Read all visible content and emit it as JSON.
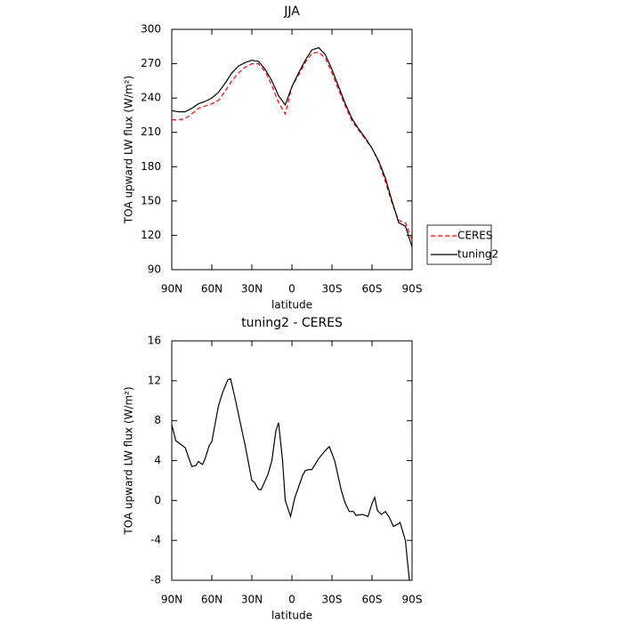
{
  "chart_data": [
    {
      "type": "line",
      "title": "JJA",
      "xlabel": "latitude",
      "ylabel": "TOA upward LW flux (W/m²)",
      "x": [
        90,
        85,
        80,
        75,
        70,
        65,
        60,
        55,
        50,
        45,
        40,
        35,
        30,
        25,
        20,
        15,
        10,
        5,
        0,
        -5,
        -10,
        -15,
        -20,
        -25,
        -30,
        -35,
        -40,
        -45,
        -50,
        -55,
        -60,
        -65,
        -70,
        -75,
        -80,
        -85,
        -90
      ],
      "series": [
        {
          "name": "CERES",
          "color": "#ff0000",
          "dashed": true,
          "values": [
            221,
            221,
            222,
            226,
            231,
            233,
            235,
            238,
            246,
            255,
            262,
            267,
            270,
            270,
            263,
            251,
            236,
            226,
            250,
            260,
            271,
            279,
            280,
            275,
            262,
            247,
            233,
            220,
            212,
            204,
            196,
            184,
            167,
            148,
            133,
            131,
            116
          ]
        },
        {
          "name": "tuning2",
          "color": "#000000",
          "dashed": false,
          "values": [
            229,
            228,
            228,
            231,
            235,
            237,
            240,
            245,
            253,
            262,
            268,
            271,
            273,
            272,
            265,
            255,
            242,
            234,
            250,
            262,
            273,
            282,
            284,
            278,
            265,
            250,
            235,
            222,
            213,
            205,
            196,
            185,
            170,
            150,
            131,
            128,
            110
          ]
        }
      ],
      "xlim": [
        90,
        -90
      ],
      "xticks": [
        {
          "value": 90,
          "label": "90N"
        },
        {
          "value": 60,
          "label": "60N"
        },
        {
          "value": 30,
          "label": "30N"
        },
        0,
        {
          "value": -30,
          "label": "30S"
        },
        {
          "value": -60,
          "label": "60S"
        },
        {
          "value": -90,
          "label": "90S"
        }
      ],
      "ylim": [
        90,
        300
      ],
      "yticks": [
        90,
        120,
        150,
        180,
        210,
        240,
        270,
        300
      ],
      "legend": "right"
    },
    {
      "type": "line",
      "title": "tuning2 - CERES",
      "xlabel": "latitude",
      "ylabel": "TOA upward LW flux (W/m²)",
      "x": [
        90,
        87,
        80,
        75,
        72,
        70,
        67,
        65,
        62,
        60,
        55,
        52,
        48,
        46,
        43,
        35,
        30,
        28,
        25,
        23,
        18,
        15,
        12,
        10,
        7,
        5,
        1,
        -2,
        -8,
        -10,
        -13,
        -15,
        -20,
        -25,
        -28,
        -32,
        -37,
        -40,
        -43,
        -46,
        -48,
        -53,
        -57,
        -60,
        -62,
        -64,
        -67,
        -70,
        -73,
        -76,
        -79,
        -81,
        -85,
        -88
      ],
      "values": [
        7.6,
        6,
        5.3,
        3.4,
        3.5,
        3.9,
        3.6,
        4.2,
        5.5,
        5.9,
        9.5,
        10.8,
        12.1,
        12.2,
        10.5,
        5.5,
        2,
        1.8,
        1.1,
        1.1,
        2.6,
        4,
        7,
        7.8,
        4,
        0,
        -1.6,
        0.2,
        2.5,
        3,
        3.1,
        3.1,
        4.2,
        5,
        5.4,
        4,
        1,
        -0.3,
        -1.1,
        -1.1,
        -1.5,
        -1.4,
        -1.6,
        -0.3,
        0.3,
        -1,
        -1.4,
        -1.1,
        -1.7,
        -2.6,
        -2.4,
        -2.2,
        -4,
        -8
      ],
      "color": "#000000",
      "xlim": [
        90,
        -90
      ],
      "xticks": [
        {
          "value": 90,
          "label": "90N"
        },
        {
          "value": 60,
          "label": "60N"
        },
        {
          "value": 30,
          "label": "30N"
        },
        0,
        {
          "value": -30,
          "label": "30S"
        },
        {
          "value": -60,
          "label": "60S"
        },
        {
          "value": -90,
          "label": "90S"
        }
      ],
      "ylim": [
        -8,
        16
      ],
      "yticks": [
        -8,
        -4,
        0,
        4,
        8,
        12,
        16
      ]
    }
  ]
}
